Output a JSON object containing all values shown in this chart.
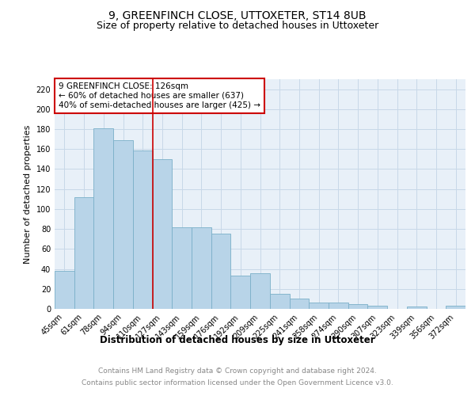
{
  "title": "9, GREENFINCH CLOSE, UTTOXETER, ST14 8UB",
  "subtitle": "Size of property relative to detached houses in Uttoxeter",
  "xlabel": "Distribution of detached houses by size in Uttoxeter",
  "ylabel": "Number of detached properties",
  "categories": [
    "45sqm",
    "61sqm",
    "78sqm",
    "94sqm",
    "110sqm",
    "127sqm",
    "143sqm",
    "159sqm",
    "176sqm",
    "192sqm",
    "209sqm",
    "225sqm",
    "241sqm",
    "258sqm",
    "274sqm",
    "290sqm",
    "307sqm",
    "323sqm",
    "339sqm",
    "356sqm",
    "372sqm"
  ],
  "values": [
    38,
    112,
    181,
    169,
    159,
    150,
    82,
    82,
    75,
    33,
    36,
    15,
    10,
    6,
    6,
    5,
    3,
    0,
    2,
    0,
    3
  ],
  "bar_color": "#b8d4e8",
  "bar_edge_color": "#7aafc8",
  "highlight_index": 5,
  "highlight_line_color": "#cc0000",
  "annotation_line1": "9 GREENFINCH CLOSE: 126sqm",
  "annotation_line2": "← 60% of detached houses are smaller (637)",
  "annotation_line3": "40% of semi-detached houses are larger (425) →",
  "annotation_box_color": "#cc0000",
  "ylim": [
    0,
    230
  ],
  "yticks": [
    0,
    20,
    40,
    60,
    80,
    100,
    120,
    140,
    160,
    180,
    200,
    220
  ],
  "grid_color": "#c8d8e8",
  "bg_color": "#e8f0f8",
  "footer_line1": "Contains HM Land Registry data © Crown copyright and database right 2024.",
  "footer_line2": "Contains public sector information licensed under the Open Government Licence v3.0.",
  "title_fontsize": 10,
  "subtitle_fontsize": 9,
  "xlabel_fontsize": 8.5,
  "ylabel_fontsize": 8,
  "tick_fontsize": 7,
  "annotation_fontsize": 7.5,
  "footer_fontsize": 6.5
}
